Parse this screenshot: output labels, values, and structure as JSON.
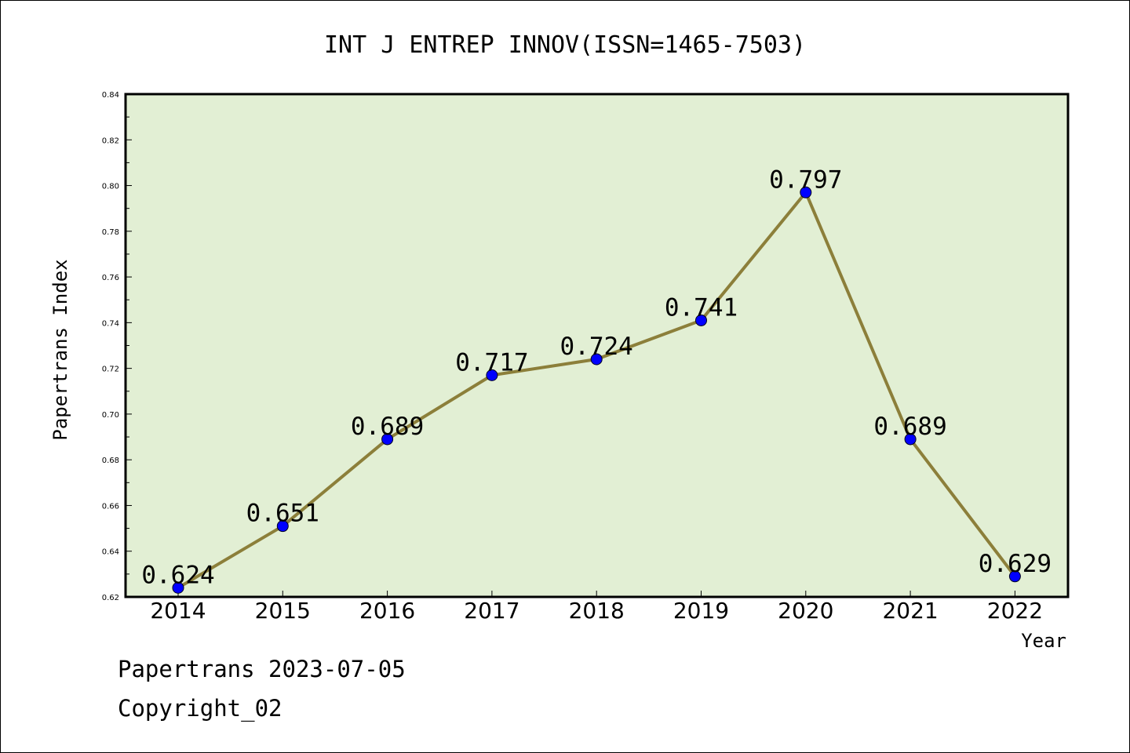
{
  "footer": {
    "line1": "Papertrans 2023-07-05",
    "line2": "Copyright_02"
  },
  "chart_data": {
    "type": "line",
    "title": "INT J ENTREP INNOV(ISSN=1465-7503)",
    "xlabel": "Year",
    "ylabel": "Papertrans Index",
    "categories": [
      "2014",
      "2015",
      "2016",
      "2017",
      "2018",
      "2019",
      "2020",
      "2021",
      "2022"
    ],
    "values": [
      0.624,
      0.651,
      0.689,
      0.717,
      0.724,
      0.741,
      0.797,
      0.689,
      0.629
    ],
    "data_labels": [
      "0.624",
      "0.651",
      "0.689",
      "0.717",
      "0.724",
      "0.741",
      "0.797",
      "0.689",
      "0.629"
    ],
    "ylim": [
      0.62,
      0.84
    ],
    "yticks": [
      "0.62",
      "0.64",
      "0.66",
      "0.68",
      "0.70",
      "0.72",
      "0.74",
      "0.76",
      "0.78",
      "0.80",
      "0.82",
      "0.84"
    ],
    "grid": false,
    "colors": {
      "plot_background": "#e2efd4",
      "line": "#8c7f3a",
      "marker": "#0000ff"
    }
  }
}
